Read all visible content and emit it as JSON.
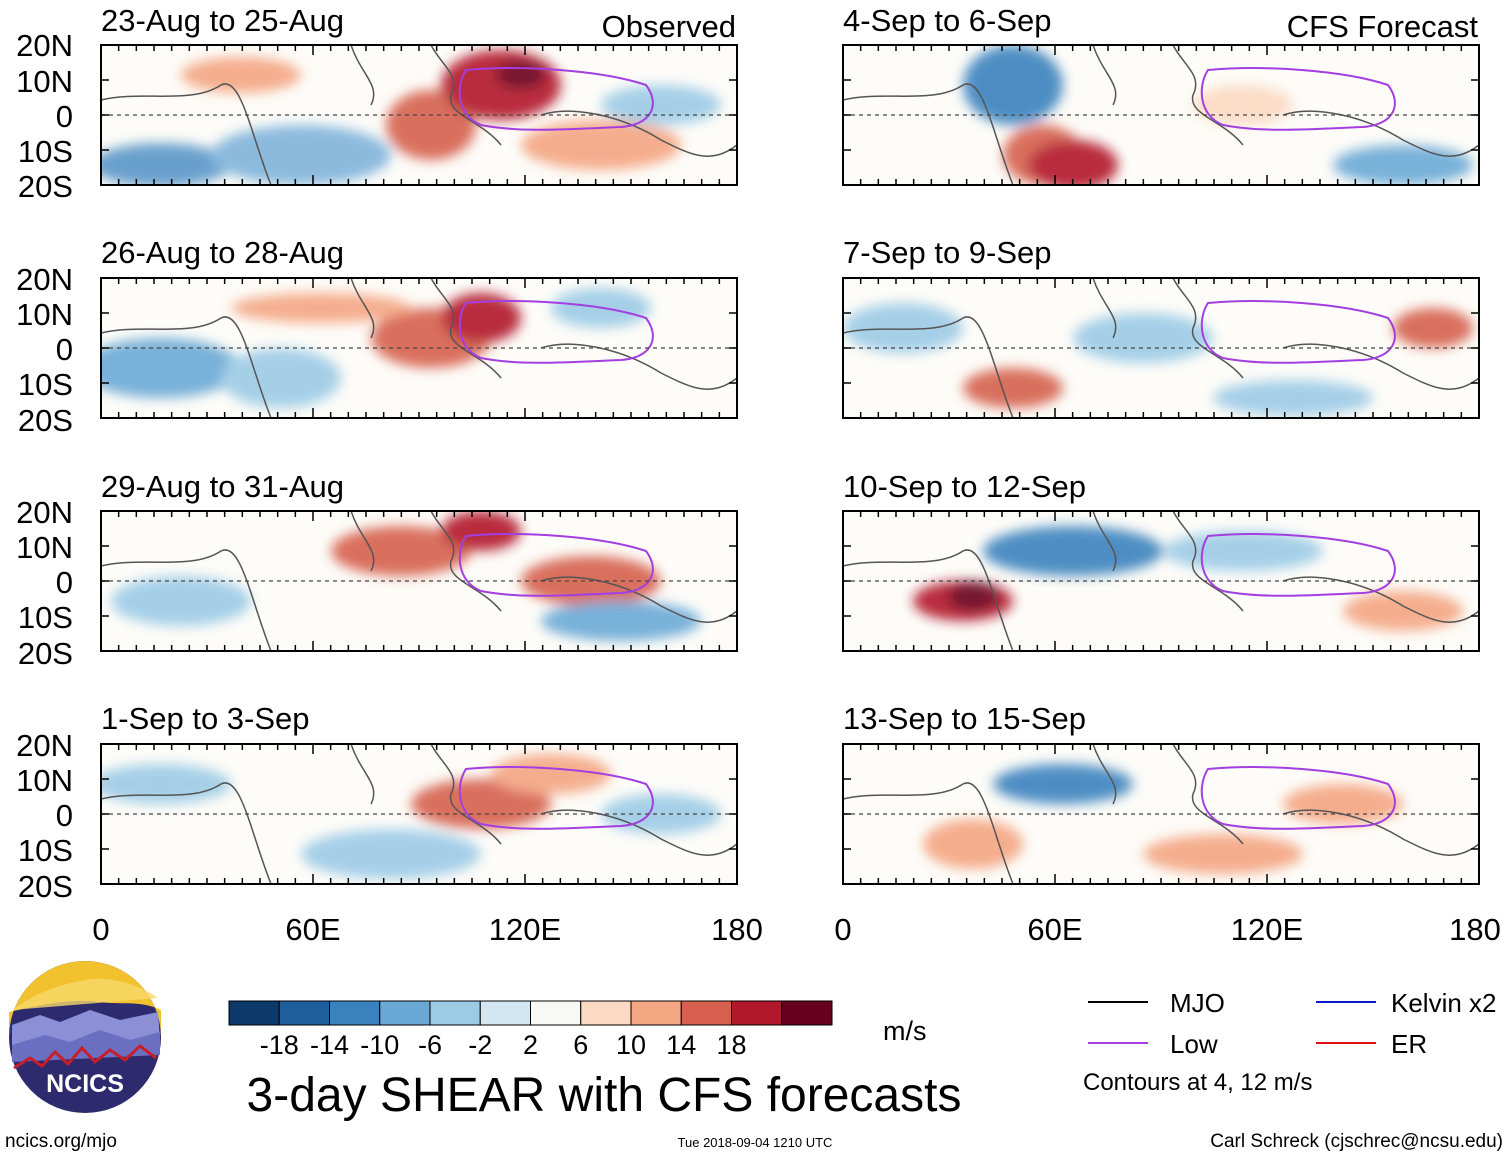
{
  "figure": {
    "title": "3-day SHEAR with CFS forecasts",
    "source_link": "ncics.org/mjo",
    "timestamp": "Tue 2018-09-04 1210 UTC",
    "credit": "Carl Schreck (cjschrec@ncsu.edu)",
    "logo_text": "NCICS"
  },
  "columns": [
    {
      "id": "observed",
      "label": "Observed"
    },
    {
      "id": "forecast",
      "label": "CFS Forecast"
    }
  ],
  "panels": [
    {
      "col": 0,
      "row": 0,
      "date_range": "23-Aug to 25-Aug"
    },
    {
      "col": 0,
      "row": 1,
      "date_range": "26-Aug to 28-Aug"
    },
    {
      "col": 0,
      "row": 2,
      "date_range": "29-Aug to 31-Aug"
    },
    {
      "col": 0,
      "row": 3,
      "date_range": "1-Sep to 3-Sep"
    },
    {
      "col": 1,
      "row": 0,
      "date_range": "4-Sep to 6-Sep"
    },
    {
      "col": 1,
      "row": 1,
      "date_range": "7-Sep to 9-Sep"
    },
    {
      "col": 1,
      "row": 2,
      "date_range": "10-Sep to 12-Sep"
    },
    {
      "col": 1,
      "row": 3,
      "date_range": "13-Sep to 15-Sep"
    }
  ],
  "axes": {
    "lat_labels": [
      "20N",
      "10N",
      "0",
      "10S",
      "20S"
    ],
    "lon_labels": [
      "0",
      "60E",
      "120E",
      "180"
    ]
  },
  "colorbar": {
    "unit": "m/s",
    "tick_labels": [
      "-18",
      "-14",
      "-10",
      "-6",
      "-2",
      "2",
      "6",
      "10",
      "14",
      "18"
    ],
    "colors": [
      "#0c3a6b",
      "#1f5e9c",
      "#3a82be",
      "#6aa9d6",
      "#9ccbe6",
      "#d3e7f3",
      "#f8f8f4",
      "#fbd9c2",
      "#f4a582",
      "#d6604d",
      "#b2182b",
      "#67001f"
    ]
  },
  "legend": {
    "items": [
      {
        "label": "MJO",
        "color": "#000000"
      },
      {
        "label": "Kelvin x2",
        "color": "#0a19c8"
      },
      {
        "label": "Low",
        "color": "#a33ee0"
      },
      {
        "label": "ER",
        "color": "#e01010"
      }
    ],
    "note": "Contours at 4, 12 m/s"
  }
}
